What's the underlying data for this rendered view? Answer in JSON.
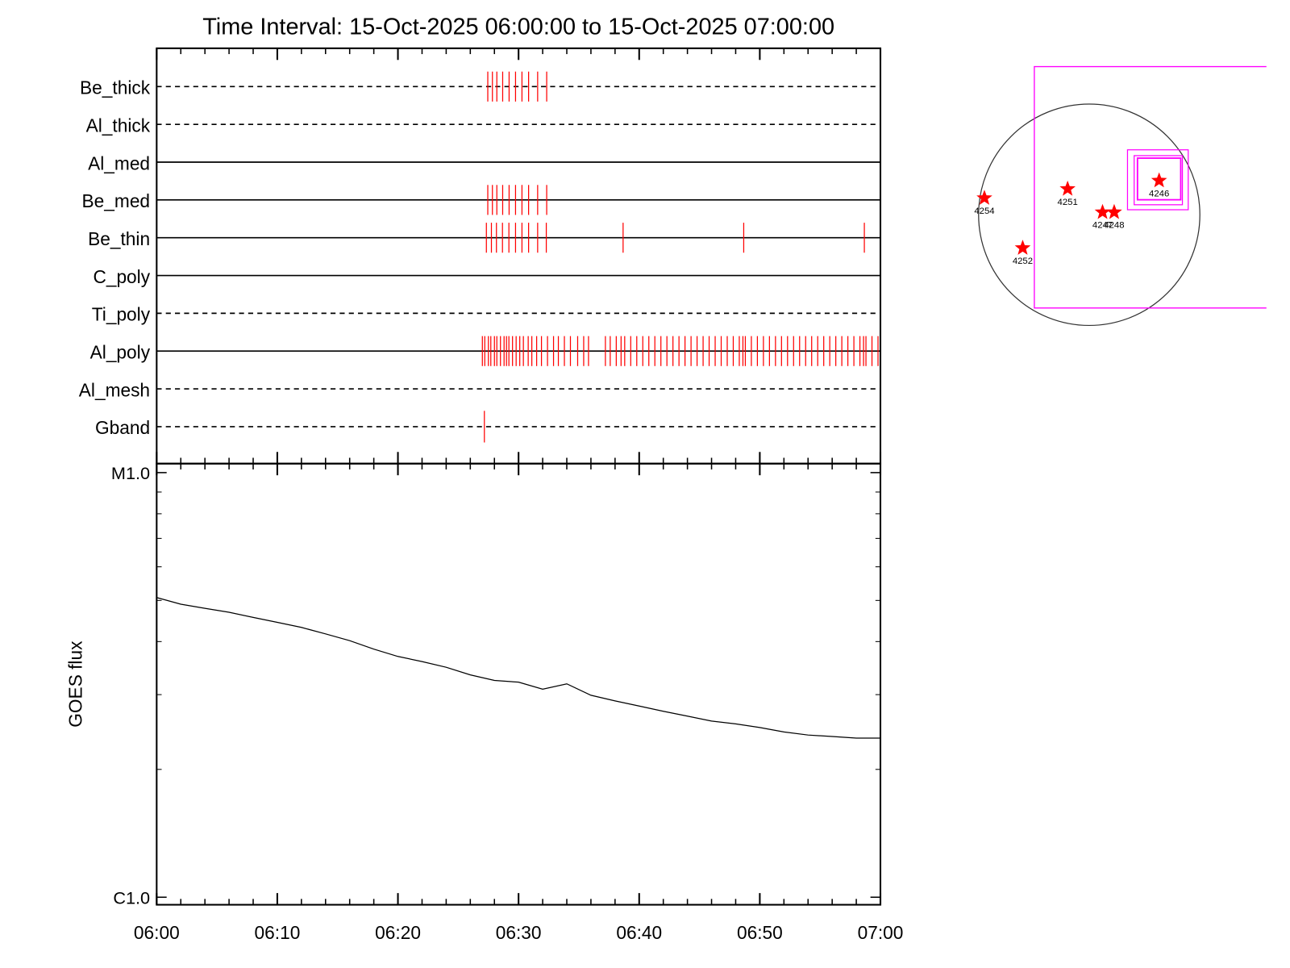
{
  "chart_data": [
    {
      "type": "events",
      "title": "Time Interval: 15-Oct-2025 06:00:00 to 15-Oct-2025 07:00:00",
      "color": "#ff0000",
      "channels": [
        {
          "name": "Be_thick",
          "line": "dashed",
          "times": [
            "06:27:27",
            "06:27:50",
            "06:28:12",
            "06:28:41",
            "06:29:13",
            "06:29:45",
            "06:30:17",
            "06:30:50",
            "06:31:35",
            "06:32:20"
          ]
        },
        {
          "name": "Al_thick",
          "line": "dashed",
          "times": []
        },
        {
          "name": "Al_med",
          "line": "solid",
          "times": []
        },
        {
          "name": "Be_med",
          "line": "solid",
          "times": [
            "06:27:27",
            "06:27:50",
            "06:28:12",
            "06:28:41",
            "06:29:13",
            "06:29:45",
            "06:30:17",
            "06:30:50",
            "06:31:35",
            "06:32:20"
          ]
        },
        {
          "name": "Be_thin",
          "line": "solid",
          "times": [
            "06:27:20",
            "06:27:45",
            "06:28:10",
            "06:28:40",
            "06:29:12",
            "06:29:45",
            "06:30:17",
            "06:30:50",
            "06:31:35",
            "06:32:18",
            "06:38:40",
            "06:48:40",
            "06:58:40"
          ]
        },
        {
          "name": "C_poly",
          "line": "solid",
          "times": []
        },
        {
          "name": "Ti_poly",
          "line": "dashed",
          "times": []
        },
        {
          "name": "Al_poly",
          "line": "solid",
          "times": [
            "06:27:00",
            "06:27:12",
            "06:27:30",
            "06:27:42",
            "06:28:00",
            "06:28:12",
            "06:28:30",
            "06:28:48",
            "06:29:00",
            "06:29:12",
            "06:29:30",
            "06:29:48",
            "06:30:06",
            "06:30:24",
            "06:30:48",
            "06:31:06",
            "06:31:30",
            "06:31:54",
            "06:32:24",
            "06:32:54",
            "06:33:18",
            "06:33:48",
            "06:34:18",
            "06:34:54",
            "06:35:24",
            "06:35:48",
            "06:37:12",
            "06:37:36",
            "06:38:06",
            "06:38:30",
            "06:38:48",
            "06:39:18",
            "06:39:48",
            "06:40:18",
            "06:40:48",
            "06:41:18",
            "06:41:48",
            "06:42:18",
            "06:42:48",
            "06:43:18",
            "06:43:48",
            "06:44:18",
            "06:44:48",
            "06:45:18",
            "06:45:48",
            "06:46:18",
            "06:46:48",
            "06:47:18",
            "06:47:48",
            "06:48:18",
            "06:48:36",
            "06:48:48",
            "06:49:18",
            "06:49:48",
            "06:50:18",
            "06:50:48",
            "06:51:18",
            "06:51:48",
            "06:52:18",
            "06:52:48",
            "06:53:18",
            "06:53:48",
            "06:54:18",
            "06:54:48",
            "06:55:18",
            "06:55:48",
            "06:56:18",
            "06:56:48",
            "06:57:18",
            "06:57:48",
            "06:58:18",
            "06:58:36",
            "06:58:48",
            "06:59:18",
            "06:59:48"
          ]
        },
        {
          "name": "Al_mesh",
          "line": "dashed",
          "times": []
        },
        {
          "name": "Gband",
          "line": "dashed",
          "times": [
            "06:27:10"
          ]
        }
      ]
    },
    {
      "type": "line",
      "ylabel": "GOES flux",
      "color": "#000000",
      "log": true,
      "x": [
        "06:00",
        "06:02",
        "06:04",
        "06:06",
        "06:08",
        "06:10",
        "06:12",
        "06:14",
        "06:16",
        "06:18",
        "06:20",
        "06:22",
        "06:24",
        "06:26",
        "06:28",
        "06:30",
        "06:32",
        "06:34",
        "06:36",
        "06:38",
        "06:40",
        "06:42",
        "06:44",
        "06:46",
        "06:48",
        "06:50",
        "06:52",
        "06:54",
        "06:56",
        "06:58",
        "07:00"
      ],
      "values": [
        5.08e-06,
        4.9e-06,
        4.79e-06,
        4.69e-06,
        4.56e-06,
        4.44e-06,
        4.32e-06,
        4.17e-06,
        4.02e-06,
        3.84e-06,
        3.69e-06,
        3.59e-06,
        3.48e-06,
        3.34e-06,
        3.24e-06,
        3.21e-06,
        3.09e-06,
        3.18e-06,
        2.99e-06,
        2.9e-06,
        2.82e-06,
        2.74e-06,
        2.67e-06,
        2.6e-06,
        2.56e-06,
        2.51e-06,
        2.45e-06,
        2.41e-06,
        2.39e-06,
        2.37e-06,
        2.37e-06
      ],
      "ylim": [
        9.6e-07,
        1.05e-05
      ],
      "yticks": [
        {
          "value": 1e-06,
          "label": "C1.0"
        },
        {
          "value": 1e-05,
          "label": "M1.0"
        }
      ],
      "yminorticks": [
        2e-06,
        3e-06,
        4e-06,
        5e-06,
        6e-06,
        7e-06,
        8e-06,
        9e-06
      ],
      "xlim": [
        "06:00",
        "07:00"
      ],
      "xticks": [
        "06:00",
        "06:10",
        "06:20",
        "06:30",
        "06:40",
        "06:50",
        "07:00"
      ],
      "xminorticks": [
        "06:02",
        "06:04",
        "06:06",
        "06:08",
        "06:12",
        "06:14",
        "06:16",
        "06:18",
        "06:22",
        "06:24",
        "06:26",
        "06:28",
        "06:32",
        "06:34",
        "06:36",
        "06:38",
        "06:42",
        "06:44",
        "06:46",
        "06:48",
        "06:52",
        "06:54",
        "06:56",
        "06:58"
      ]
    },
    {
      "type": "map",
      "color": "#ff0000",
      "box_color": "#ff00ff",
      "regions": [
        "4254",
        "4251",
        "4247",
        "4248",
        "4252",
        "4246"
      ]
    }
  ]
}
